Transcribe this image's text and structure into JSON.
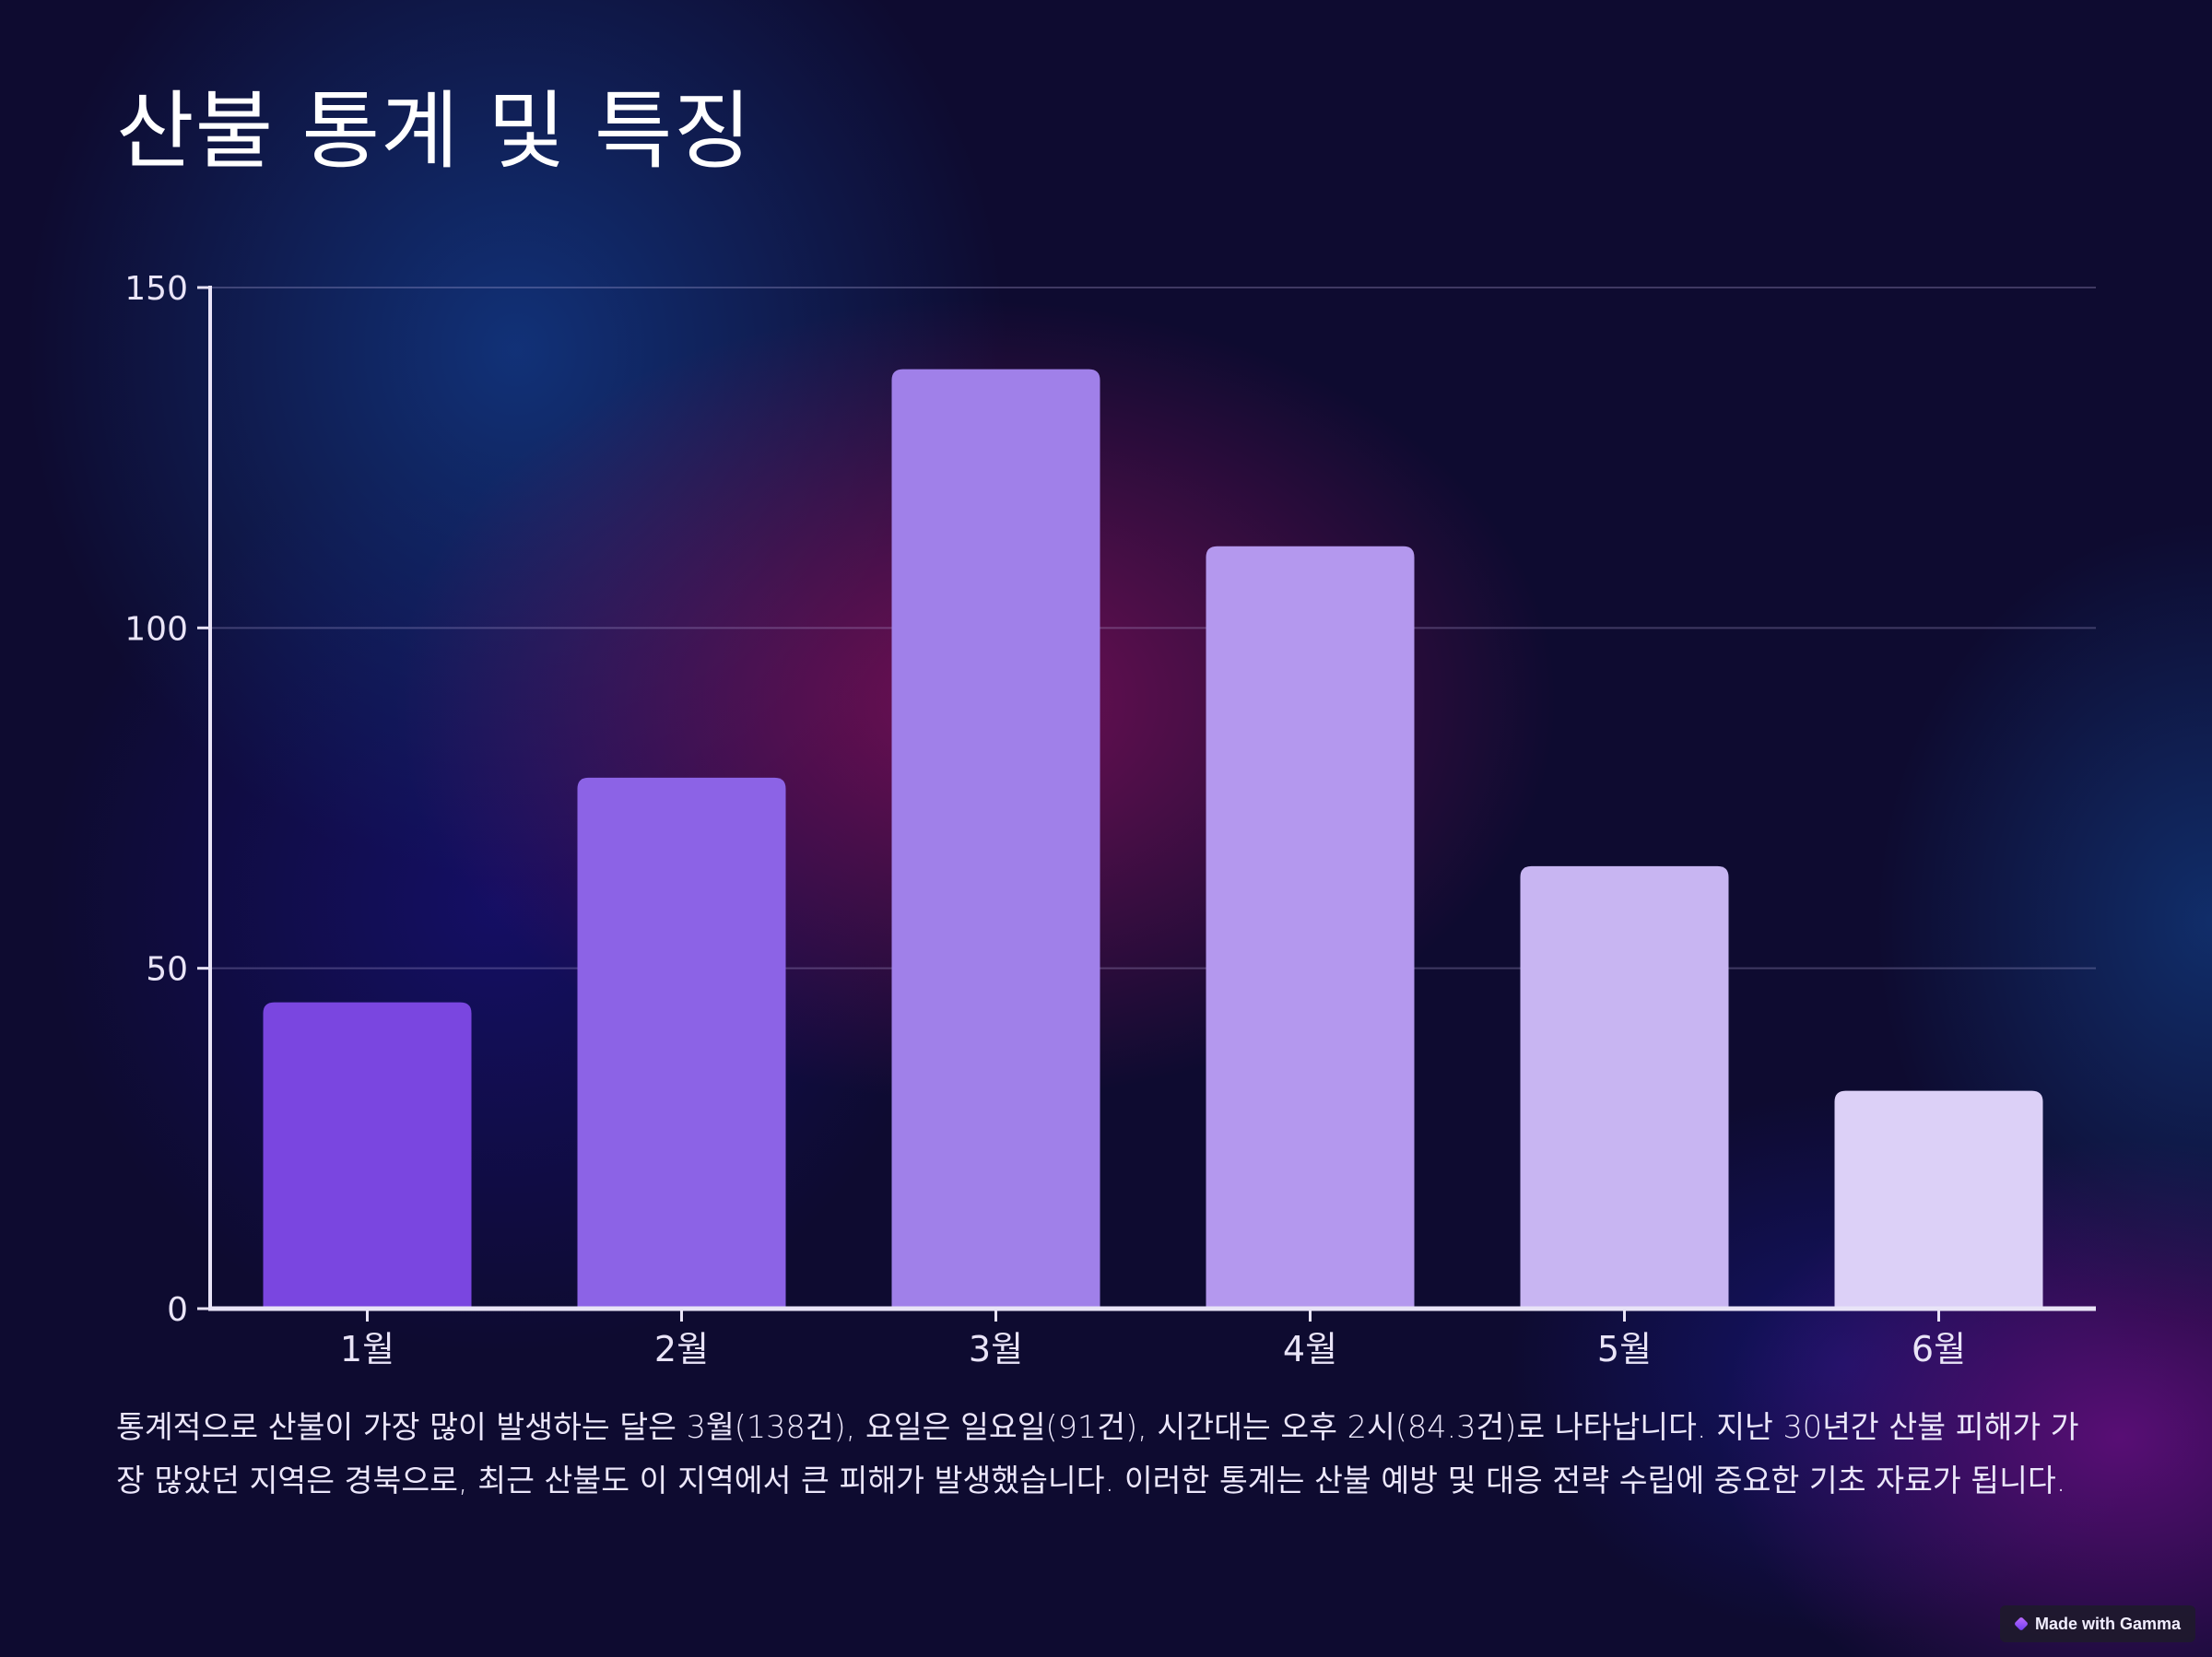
{
  "title": "산불 통계 및 특징",
  "chart_data": {
    "type": "bar",
    "categories": [
      "1월",
      "2월",
      "3월",
      "4월",
      "5월",
      "6월"
    ],
    "values": [
      45,
      78,
      138,
      112,
      65,
      32
    ],
    "colors": [
      "#7a46e0",
      "#8c63e6",
      "#a080e9",
      "#b498ee",
      "#c8b5f2",
      "#dcd0f7"
    ],
    "ylim": [
      0,
      150
    ],
    "yticks": [
      0,
      50,
      100,
      150
    ],
    "grid": true,
    "xlabel": "",
    "ylabel": ""
  },
  "caption": "통계적으로 산불이 가장 많이 발생하는 달은 3월(138건), 요일은 일요일(91건), 시간대는 오후 2시(84.3건)로 나타납니다. 지난 30년간 산불 피해가 가장 많았던 지역은 경북으로, 최근 산불도 이 지역에서 큰 피해가 발생했습니다. 이러한 통계는 산불 예방 및 대응 전략 수립에 중요한 기초 자료가 됩니다.",
  "badge": {
    "label": "Made with Gamma",
    "icon": "gamma-logo-icon"
  }
}
